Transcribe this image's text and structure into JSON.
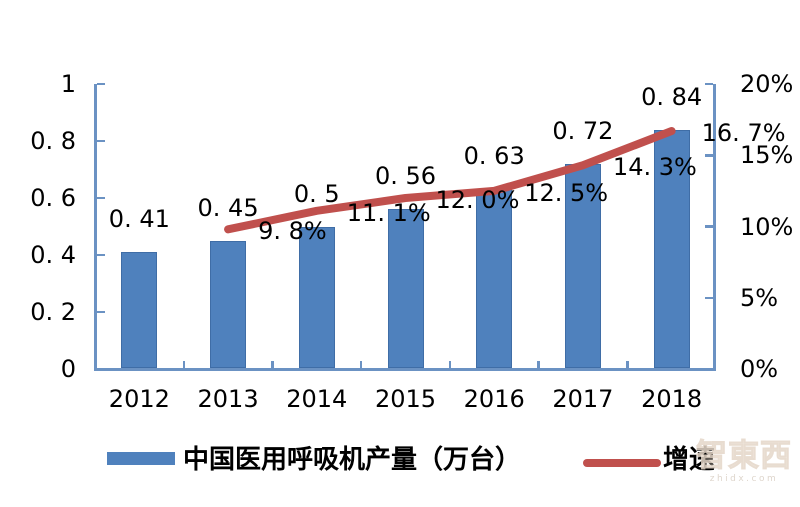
{
  "page": {
    "background": "#ffffff"
  },
  "chart_data": {
    "type": "bar",
    "subtype": "combo-bar-line-dual-axis",
    "categories": [
      "2012",
      "2013",
      "2014",
      "2015",
      "2016",
      "2017",
      "2018"
    ],
    "series": [
      {
        "name": "中国医用呼吸机产量（万台）",
        "kind": "bar",
        "axis": "left",
        "color": "#4f81bd",
        "values": [
          0.41,
          0.45,
          0.5,
          0.56,
          0.63,
          0.72,
          0.84
        ],
        "labels": [
          "0. 41",
          "0. 45",
          "0. 5",
          "0. 56",
          "0. 63",
          "0. 72",
          "0. 84"
        ]
      },
      {
        "name": "增速",
        "kind": "line",
        "axis": "right",
        "color": "#c0504d",
        "values": [
          null,
          9.8,
          11.1,
          12.0,
          12.5,
          14.3,
          16.7
        ],
        "labels": [
          null,
          "9. 8%",
          "11. 1%",
          "12. 0%",
          "12. 5%",
          "14. 3%",
          "16. 7%"
        ]
      }
    ],
    "left_axis": {
      "min": 0,
      "max": 1,
      "tick_values": [
        0,
        0.2,
        0.4,
        0.6,
        0.8,
        1
      ],
      "ticks": [
        "0",
        "0. 2",
        "0. 4",
        "0. 6",
        "0. 8",
        "1"
      ]
    },
    "right_axis": {
      "min": 0,
      "max": 20,
      "tick_values": [
        0,
        5,
        10,
        15,
        20
      ],
      "ticks": [
        "0%",
        "5%",
        "10%",
        "15%",
        "20%"
      ]
    },
    "grid": false,
    "axis_color": "#6b92c3",
    "legend_position": "bottom",
    "legend": [
      {
        "label": "中国医用呼吸机产量（万台）",
        "kind": "bar",
        "color": "#4f81bd"
      },
      {
        "label": "增速",
        "kind": "line",
        "color": "#c0504d"
      }
    ]
  },
  "watermark": {
    "logo_text": "智東西",
    "domain_text": "zhidx.com"
  }
}
